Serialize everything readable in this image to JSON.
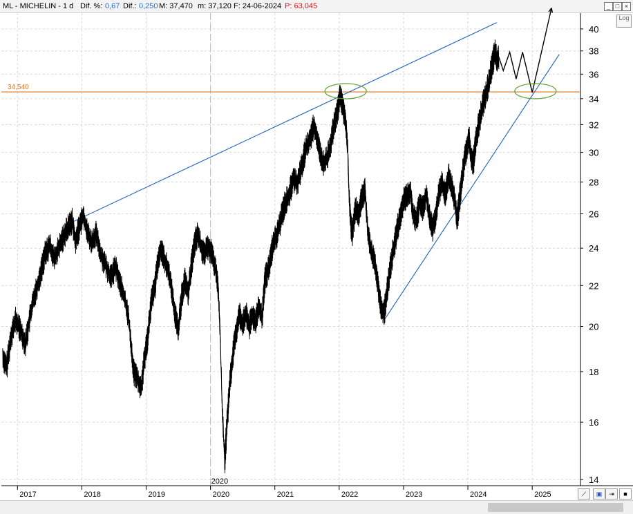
{
  "header": {
    "symbol_label": "ML - MICHELIN - 1 d",
    "dif_pct_label": "Dif. %:",
    "dif_pct_value": "0,67",
    "dif_label": "Dif.:",
    "dif_value": "0,250",
    "max_label": "M: 37,470",
    "min_label": "m: 37,120",
    "date_label": "F: 24-06-2024",
    "p_label": "P: 63,045"
  },
  "controls": {
    "log_label": "Log",
    "minimize": "_",
    "restore": "□",
    "close": "×"
  },
  "colors": {
    "price": "#000000",
    "trendline": "#1f5fbf",
    "level": "#e0741a",
    "ellipse": "#5aa02c",
    "label_blue": "#1f6fd1",
    "label_red": "#d81414"
  },
  "chart_data": {
    "type": "line",
    "title": "ML - MICHELIN - 1 d",
    "y_scale": "log",
    "ylim": [
      13.8,
      41.5
    ],
    "xlim": [
      2016.75,
      2025.75
    ],
    "y_ticks": [
      14,
      16,
      18,
      20,
      22,
      24,
      26,
      28,
      30,
      32,
      34,
      36,
      38,
      40
    ],
    "x_ticks": [
      {
        "x": 2017,
        "label": "2017"
      },
      {
        "x": 2018,
        "label": "2018"
      },
      {
        "x": 2019,
        "label": "2019"
      },
      {
        "x": 2020,
        "label": "2020"
      },
      {
        "x": 2021,
        "label": "2021"
      },
      {
        "x": 2022,
        "label": "2022"
      },
      {
        "x": 2023,
        "label": "2023"
      },
      {
        "x": 2024,
        "label": "2024"
      },
      {
        "x": 2025,
        "label": "2025"
      }
    ],
    "grid": true,
    "vline": {
      "x": 2020,
      "label": "2020"
    },
    "series": [
      {
        "values": [
          [
            2016.77,
            18.6
          ],
          [
            2016.83,
            18.2
          ],
          [
            2016.9,
            19.6
          ],
          [
            2016.97,
            20.3
          ],
          [
            2017.05,
            19.8
          ],
          [
            2017.12,
            19.2
          ],
          [
            2017.2,
            20.6
          ],
          [
            2017.27,
            21.6
          ],
          [
            2017.35,
            22.5
          ],
          [
            2017.42,
            23.6
          ],
          [
            2017.5,
            24.2
          ],
          [
            2017.57,
            23.4
          ],
          [
            2017.65,
            24.1
          ],
          [
            2017.73,
            24.8
          ],
          [
            2017.8,
            25.3
          ],
          [
            2017.85,
            25.6
          ],
          [
            2017.9,
            24.3
          ],
          [
            2017.95,
            25.1
          ],
          [
            2018.02,
            26.0
          ],
          [
            2018.08,
            25.0
          ],
          [
            2018.15,
            24.3
          ],
          [
            2018.22,
            24.8
          ],
          [
            2018.3,
            23.6
          ],
          [
            2018.38,
            23.0
          ],
          [
            2018.45,
            22.4
          ],
          [
            2018.52,
            23.0
          ],
          [
            2018.6,
            22.0
          ],
          [
            2018.67,
            21.3
          ],
          [
            2018.73,
            20.3
          ],
          [
            2018.8,
            18.0
          ],
          [
            2018.85,
            17.8
          ],
          [
            2018.92,
            17.3
          ],
          [
            2018.97,
            18.5
          ],
          [
            2019.02,
            19.5
          ],
          [
            2019.08,
            21.2
          ],
          [
            2019.13,
            21.9
          ],
          [
            2019.18,
            23.2
          ],
          [
            2019.23,
            24.0
          ],
          [
            2019.28,
            23.4
          ],
          [
            2019.35,
            22.7
          ],
          [
            2019.4,
            21.7
          ],
          [
            2019.45,
            20.5
          ],
          [
            2019.5,
            19.9
          ],
          [
            2019.55,
            21.4
          ],
          [
            2019.6,
            22.3
          ],
          [
            2019.65,
            21.6
          ],
          [
            2019.7,
            23.0
          ],
          [
            2019.75,
            24.2
          ],
          [
            2019.8,
            24.8
          ],
          [
            2019.85,
            24.1
          ],
          [
            2019.9,
            23.6
          ],
          [
            2019.95,
            24.1
          ],
          [
            2020.02,
            23.7
          ],
          [
            2020.08,
            22.8
          ],
          [
            2020.12,
            21.8
          ],
          [
            2020.15,
            19.5
          ],
          [
            2020.18,
            16.5
          ],
          [
            2020.22,
            14.6
          ],
          [
            2020.25,
            15.8
          ],
          [
            2020.3,
            17.6
          ],
          [
            2020.35,
            18.8
          ],
          [
            2020.4,
            19.8
          ],
          [
            2020.45,
            20.6
          ],
          [
            2020.5,
            20.1
          ],
          [
            2020.55,
            20.6
          ],
          [
            2020.6,
            20.0
          ],
          [
            2020.65,
            20.5
          ],
          [
            2020.7,
            20.3
          ],
          [
            2020.75,
            20.9
          ],
          [
            2020.8,
            20.4
          ],
          [
            2020.85,
            22.5
          ],
          [
            2020.88,
            22.6
          ],
          [
            2020.93,
            23.4
          ],
          [
            2020.97,
            24.3
          ],
          [
            2021.03,
            24.7
          ],
          [
            2021.1,
            25.8
          ],
          [
            2021.15,
            26.6
          ],
          [
            2021.22,
            27.2
          ],
          [
            2021.28,
            28.2
          ],
          [
            2021.35,
            28.0
          ],
          [
            2021.42,
            29.1
          ],
          [
            2021.48,
            30.3
          ],
          [
            2021.55,
            31.0
          ],
          [
            2021.6,
            31.9
          ],
          [
            2021.65,
            31.2
          ],
          [
            2021.7,
            30.0
          ],
          [
            2021.75,
            29.2
          ],
          [
            2021.82,
            29.7
          ],
          [
            2021.88,
            31.0
          ],
          [
            2021.93,
            32.2
          ],
          [
            2021.97,
            32.9
          ],
          [
            2022.01,
            34.3
          ],
          [
            2022.05,
            33.5
          ],
          [
            2022.1,
            32.1
          ],
          [
            2022.13,
            30.3
          ],
          [
            2022.15,
            27.3
          ],
          [
            2022.18,
            25.3
          ],
          [
            2022.2,
            24.9
          ],
          [
            2022.25,
            26.3
          ],
          [
            2022.3,
            26.0
          ],
          [
            2022.35,
            27.1
          ],
          [
            2022.4,
            27.4
          ],
          [
            2022.45,
            24.7
          ],
          [
            2022.5,
            23.8
          ],
          [
            2022.55,
            23.3
          ],
          [
            2022.58,
            22.6
          ],
          [
            2022.62,
            21.5
          ],
          [
            2022.65,
            20.9
          ],
          [
            2022.7,
            20.7
          ],
          [
            2022.75,
            21.9
          ],
          [
            2022.8,
            23.1
          ],
          [
            2022.85,
            24.1
          ],
          [
            2022.9,
            25.1
          ],
          [
            2022.95,
            25.9
          ],
          [
            2023.0,
            26.8
          ],
          [
            2023.05,
            27.2
          ],
          [
            2023.1,
            27.5
          ],
          [
            2023.15,
            25.9
          ],
          [
            2023.2,
            25.6
          ],
          [
            2023.25,
            26.7
          ],
          [
            2023.3,
            26.3
          ],
          [
            2023.35,
            27.2
          ],
          [
            2023.4,
            25.9
          ],
          [
            2023.45,
            25.1
          ],
          [
            2023.5,
            26.0
          ],
          [
            2023.55,
            27.3
          ],
          [
            2023.6,
            27.9
          ],
          [
            2023.65,
            27.1
          ],
          [
            2023.7,
            28.5
          ],
          [
            2023.75,
            27.7
          ],
          [
            2023.8,
            26.7
          ],
          [
            2023.83,
            25.6
          ],
          [
            2023.88,
            27.3
          ],
          [
            2023.93,
            29.1
          ],
          [
            2023.97,
            30.1
          ],
          [
            2024.02,
            31.0
          ],
          [
            2024.05,
            29.6
          ],
          [
            2024.08,
            29.2
          ],
          [
            2024.1,
            29.9
          ],
          [
            2024.13,
            31.1
          ],
          [
            2024.18,
            32.4
          ],
          [
            2024.23,
            33.5
          ],
          [
            2024.27,
            34.1
          ],
          [
            2024.32,
            35.2
          ],
          [
            2024.37,
            36.6
          ],
          [
            2024.42,
            37.9
          ],
          [
            2024.45,
            37.3
          ],
          [
            2024.48,
            37.5
          ]
        ]
      },
      {
        "values": [
          [
            2024.48,
            37.5
          ],
          [
            2024.55,
            36.3
          ],
          [
            2024.65,
            37.9
          ],
          [
            2024.75,
            35.6
          ],
          [
            2024.85,
            37.9
          ],
          [
            2025.0,
            34.5
          ],
          [
            2025.3,
            42.0
          ]
        ]
      }
    ],
    "trendlines": [
      {
        "from": [
          2017.85,
          25.5
        ],
        "to": [
          2024.45,
          40.6
        ]
      },
      {
        "from": [
          2022.7,
          20.3
        ],
        "to": [
          2025.42,
          37.7
        ]
      }
    ],
    "hline": {
      "y": 34.54,
      "label": "34,540"
    },
    "ellipses": [
      {
        "cx": 2022.1,
        "cy": 34.6
      },
      {
        "cx": 2025.05,
        "cy": 34.6
      }
    ]
  }
}
